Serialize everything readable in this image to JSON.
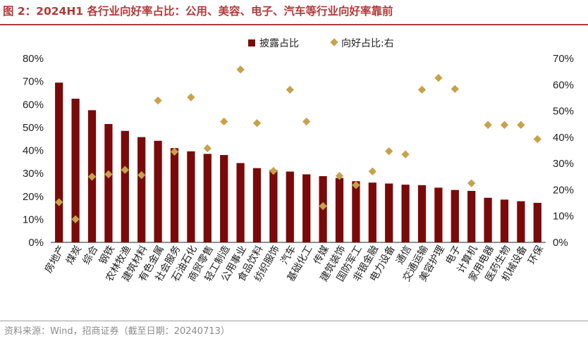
{
  "title": "图 2：2024H1 各行业向好率占比：公用、美容、电子、汽车等行业向好率靠前",
  "source": "资料来源：Wind，招商证券（截至日期：20240713）",
  "colors": {
    "bar": "#7a0a0a",
    "marker": "#c9a14a",
    "title": "#b23a3a"
  },
  "chart_data": {
    "type": "bar",
    "categories": [
      "房地产",
      "煤炭",
      "综合",
      "钢铁",
      "农林牧渔",
      "建筑材料",
      "有色金属",
      "社会服务",
      "石油石化",
      "商贸零售",
      "轻工制造",
      "公用事业",
      "食品饮料",
      "纺织服饰",
      "汽车",
      "基础化工",
      "传媒",
      "建筑装饰",
      "国防军工",
      "非银金融",
      "电力设备",
      "通信",
      "交通运输",
      "美容护理",
      "电子",
      "计算机",
      "家用电器",
      "医药生物",
      "机械设备",
      "环保"
    ],
    "series": [
      {
        "name": "披露占比",
        "type": "bar",
        "axis": "left",
        "values": [
          69.5,
          62.5,
          57.5,
          51.5,
          48.5,
          45.8,
          44.2,
          41.0,
          39.6,
          38.5,
          38.0,
          34.5,
          32.3,
          31.5,
          30.8,
          29.6,
          28.8,
          28.0,
          26.6,
          26.0,
          25.6,
          25.1,
          24.9,
          23.8,
          22.8,
          22.4,
          19.4,
          18.6,
          17.9,
          17.2
        ]
      },
      {
        "name": "向好占比:右",
        "type": "scatter",
        "axis": "right",
        "values": [
          15.3,
          8.8,
          25.0,
          25.9,
          27.6,
          25.6,
          54.0,
          34.5,
          55.2,
          35.8,
          46.0,
          65.8,
          45.4,
          27.2,
          58.1,
          46.0,
          13.8,
          25.3,
          21.8,
          27.0,
          34.7,
          33.5,
          58.1,
          62.6,
          58.4,
          22.5,
          44.7,
          44.7,
          44.7,
          39.3
        ]
      }
    ],
    "yleft": {
      "ylim": [
        0,
        80
      ],
      "ticks": [
        "0%",
        "10%",
        "20%",
        "30%",
        "40%",
        "50%",
        "60%",
        "70%",
        "80%"
      ]
    },
    "yright": {
      "ylim": [
        0,
        70
      ],
      "ticks": [
        "0%",
        "10%",
        "20%",
        "30%",
        "40%",
        "50%",
        "60%",
        "70%"
      ]
    },
    "legend": [
      "披露占比",
      "向好占比:右"
    ],
    "legend_position": "top-right"
  }
}
